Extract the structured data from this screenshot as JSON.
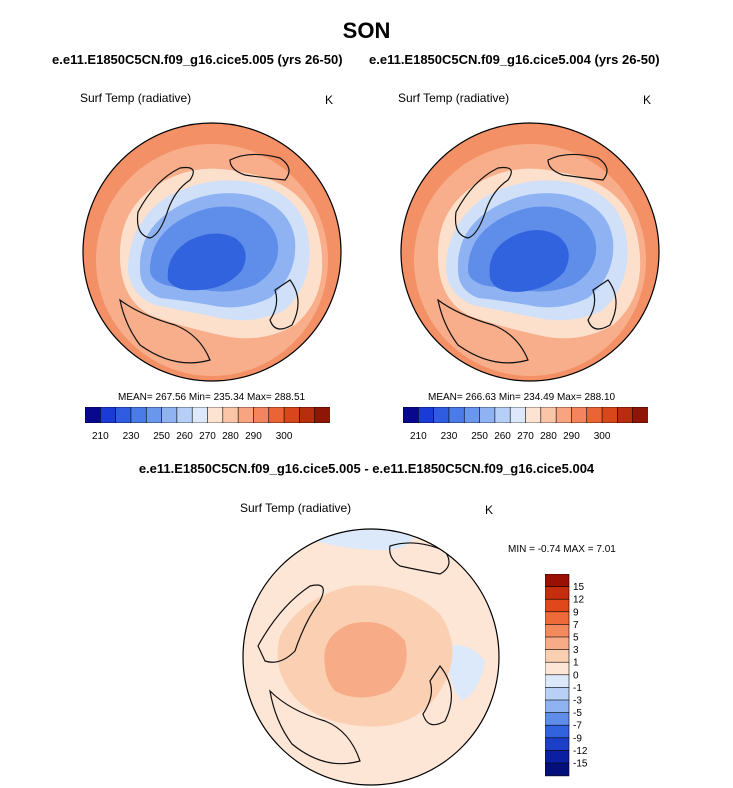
{
  "chart_data": {
    "type": "heatmap",
    "projection": "north polar stereographic",
    "season": "SON",
    "panels": [
      {
        "id": "case1",
        "title": "e.e11.E1850C5CN.f09_g16.cice5.005 (yrs 26-50)",
        "variable": "Surf Temp (radiative)",
        "units": "K",
        "stats": "MEAN= 267.56  Min= 235.34  Max= 288.51",
        "mean": 267.56,
        "min": 235.34,
        "max": 288.51
      },
      {
        "id": "case2",
        "title": "e.e11.E1850C5CN.f09_g16.cice5.004 (yrs 26-50)",
        "variable": "Surf Temp (radiative)",
        "units": "K",
        "stats": "MEAN= 266.63  Min= 234.49  Max= 288.10",
        "mean": 266.63,
        "min": 234.49,
        "max": 288.1
      },
      {
        "id": "difference",
        "title": "e.e11.E1850C5CN.f09_g16.cice5.005 - e.e11.E1850C5CN.f09_g16.cice5.004",
        "variable": "Surf Temp (radiative)",
        "units": "K",
        "stats": "MIN =  -0.74 MAX =   7.01",
        "min": -0.74,
        "max": 7.01
      }
    ],
    "temp_colorbar": {
      "tick_labels": [
        "210",
        "230",
        "250",
        "260",
        "270",
        "280",
        "290",
        "300"
      ],
      "colors": [
        "#08088f",
        "#1a3bd6",
        "#2f5ce0",
        "#4a7be8",
        "#6a97ee",
        "#8fb3f2",
        "#b6cff7",
        "#dde9fb",
        "#fde4d2",
        "#fbc5a8",
        "#f8a481",
        "#f3845d",
        "#ea6435",
        "#d8461b",
        "#b82d0e",
        "#8f1606"
      ]
    },
    "diff_colorbar": {
      "levels": [
        "15",
        "12",
        "9",
        "7",
        "5",
        "3",
        "1",
        "0",
        "-1",
        "-3",
        "-5",
        "-7",
        "-9",
        "-12",
        "-15"
      ],
      "colors": [
        "#9a1104",
        "#c42e0e",
        "#e0481c",
        "#ee6a3a",
        "#f38a5e",
        "#f7ab86",
        "#fbcfb2",
        "#fde6d6",
        "#dce9fb",
        "#b9d0f6",
        "#8fb2f1",
        "#5f8dea",
        "#3263de",
        "#1c3fc8",
        "#0b1fa2",
        "#04107a"
      ]
    }
  }
}
